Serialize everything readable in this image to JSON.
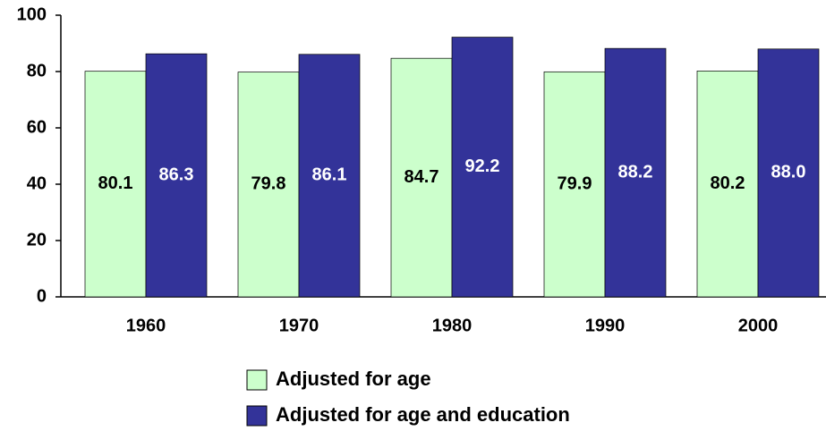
{
  "chart_data": {
    "type": "bar",
    "categories": [
      "1960",
      "1970",
      "1980",
      "1990",
      "2000"
    ],
    "series": [
      {
        "name": "Adjusted for age",
        "color": "#ccffcc",
        "values": [
          80.1,
          79.8,
          84.7,
          79.9,
          80.2
        ]
      },
      {
        "name": "Adjusted for age and education",
        "color": "#333399",
        "values": [
          86.3,
          86.1,
          92.2,
          88.2,
          88.0
        ],
        "value_labels": [
          "86.3",
          "86.1",
          "92.2",
          "88.2",
          "88.0"
        ]
      }
    ],
    "ylim": [
      0,
      100
    ],
    "yticks": [
      0,
      20,
      40,
      60,
      80,
      100
    ],
    "legend": "bottom"
  }
}
